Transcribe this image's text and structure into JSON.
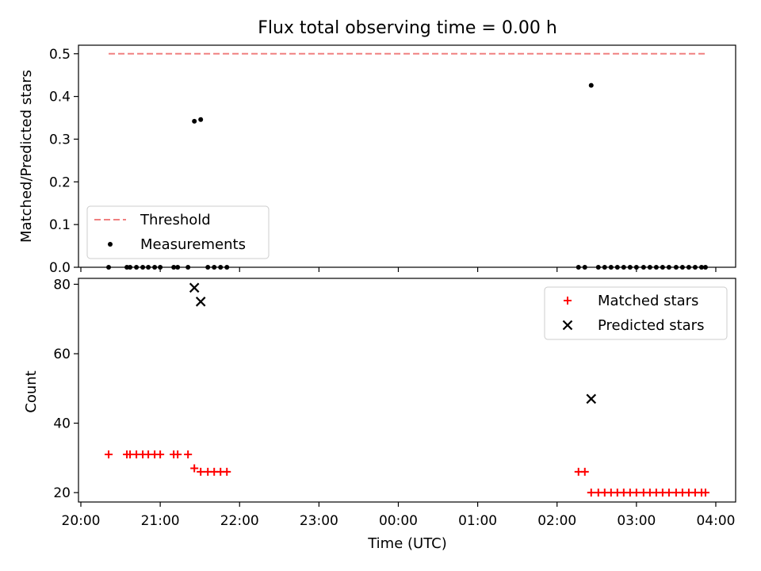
{
  "chart_data": [
    {
      "type": "scatter",
      "title": "Flux total observing time = 0.00 h",
      "xlabel": "",
      "ylabel": "Matched/Predicted stars",
      "x_unit": "hours since 20:00 UTC",
      "xlim": [
        -0.03,
        8.25
      ],
      "ylim": [
        0.0,
        0.52
      ],
      "y_ticks": [
        0.0,
        0.1,
        0.2,
        0.3,
        0.4,
        0.5
      ],
      "y_tick_labels": [
        "0.0",
        "0.1",
        "0.2",
        "0.3",
        "0.4",
        "0.5"
      ],
      "legend": {
        "position": "lower-left",
        "entries": [
          "Threshold",
          "Measurements"
        ]
      },
      "series": [
        {
          "name": "Threshold",
          "kind": "dashed-line",
          "color": "#f08080",
          "x": [
            0.35,
            7.87
          ],
          "y": [
            0.5,
            0.5
          ]
        },
        {
          "name": "Measurements",
          "kind": "dot",
          "color": "#000000",
          "x": [
            0.35,
            0.58,
            0.62,
            0.7,
            0.78,
            0.85,
            0.93,
            1.0,
            1.17,
            1.22,
            1.35,
            1.43,
            1.51,
            1.6,
            1.68,
            1.76,
            1.84,
            6.27,
            6.35,
            6.43,
            6.52,
            6.6,
            6.68,
            6.76,
            6.84,
            6.92,
            7.0,
            7.09,
            7.17,
            7.25,
            7.33,
            7.41,
            7.5,
            7.58,
            7.66,
            7.74,
            7.82,
            7.87
          ],
          "y": [
            0,
            0,
            0,
            0,
            0,
            0,
            0,
            0,
            0,
            0,
            0,
            0.342,
            0.346,
            0,
            0,
            0,
            0,
            0,
            0,
            0.426,
            0,
            0,
            0,
            0,
            0,
            0,
            0,
            0,
            0,
            0,
            0,
            0,
            0,
            0,
            0,
            0,
            0,
            0
          ]
        }
      ]
    },
    {
      "type": "scatter",
      "title": "",
      "xlabel": "Time (UTC)",
      "ylabel": "Count",
      "x_unit": "hours since 20:00 UTC",
      "xlim": [
        -0.03,
        8.25
      ],
      "ylim": [
        17.3,
        81.7
      ],
      "x_ticks": [
        0,
        1,
        2,
        3,
        4,
        5,
        6,
        7,
        8
      ],
      "x_tick_labels": [
        "20:00",
        "21:00",
        "22:00",
        "23:00",
        "00:00",
        "01:00",
        "02:00",
        "03:00",
        "04:00"
      ],
      "y_ticks": [
        20,
        40,
        60,
        80
      ],
      "y_tick_labels": [
        "20",
        "40",
        "60",
        "80"
      ],
      "legend": {
        "position": "top-right",
        "entries": [
          "Matched stars",
          "Predicted stars"
        ]
      },
      "series": [
        {
          "name": "Matched stars",
          "kind": "plus",
          "color": "#ff0000",
          "x": [
            0.35,
            0.58,
            0.62,
            0.7,
            0.78,
            0.85,
            0.93,
            1.0,
            1.17,
            1.22,
            1.35,
            1.43,
            1.51,
            1.6,
            1.68,
            1.76,
            1.84,
            6.27,
            6.35,
            6.43,
            6.52,
            6.6,
            6.68,
            6.76,
            6.84,
            6.92,
            7.0,
            7.09,
            7.17,
            7.25,
            7.33,
            7.41,
            7.5,
            7.58,
            7.66,
            7.74,
            7.82,
            7.87
          ],
          "y": [
            31,
            31,
            31,
            31,
            31,
            31,
            31,
            31,
            31,
            31,
            31,
            27,
            26,
            26,
            26,
            26,
            26,
            26,
            26,
            20,
            20,
            20,
            20,
            20,
            20,
            20,
            20,
            20,
            20,
            20,
            20,
            20,
            20,
            20,
            20,
            20,
            20,
            20
          ]
        },
        {
          "name": "Predicted stars",
          "kind": "x",
          "color": "#000000",
          "x": [
            1.43,
            1.51,
            6.43
          ],
          "y": [
            79,
            75,
            47
          ]
        }
      ]
    }
  ]
}
